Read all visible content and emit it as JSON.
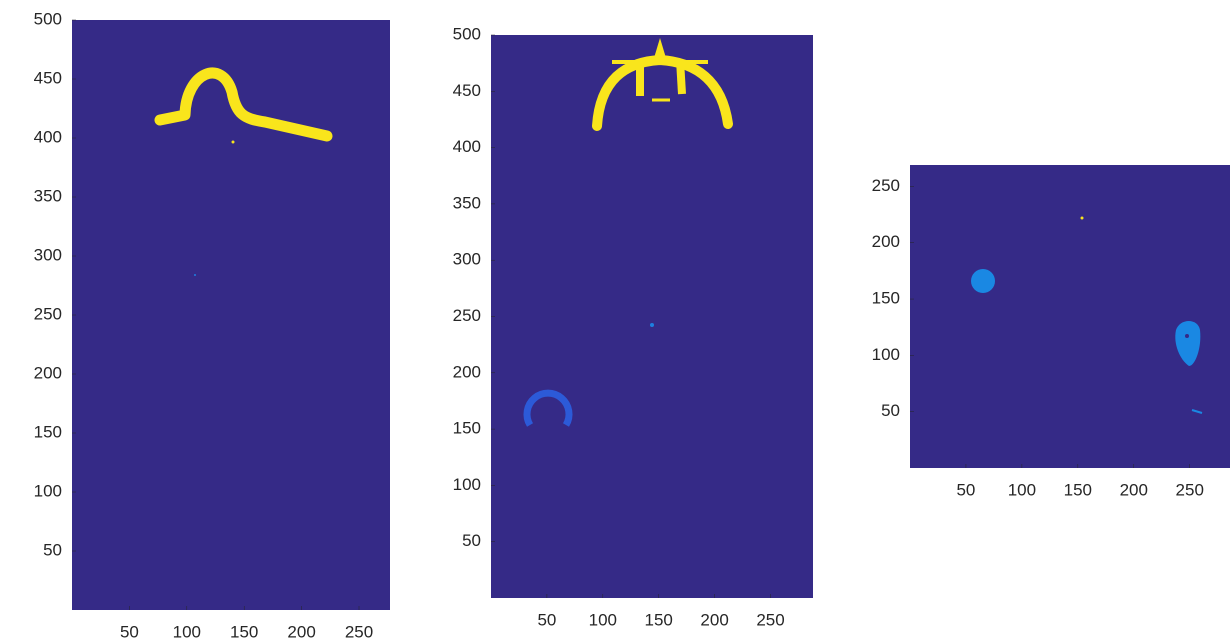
{
  "chart_data": [
    {
      "type": "image",
      "color": "#352a87",
      "xlim": [
        0,
        277
      ],
      "ylim": [
        0,
        500
      ],
      "xticks": [
        50,
        100,
        150,
        200,
        250
      ],
      "yticks": [
        50,
        100,
        150,
        200,
        250,
        300,
        350,
        400,
        450,
        500
      ]
    },
    {
      "type": "image",
      "color": "#352a87",
      "xlim": [
        0,
        288
      ],
      "ylim": [
        0,
        500
      ],
      "xticks": [
        50,
        100,
        150,
        200,
        250
      ],
      "yticks": [
        50,
        100,
        150,
        200,
        250,
        300,
        350,
        400,
        450,
        500
      ]
    },
    {
      "type": "image",
      "color": "#352a87",
      "xlim": [
        0,
        286
      ],
      "ylim": [
        0,
        269
      ],
      "xticks": [
        50,
        100,
        150,
        200,
        250
      ],
      "yticks": [
        50,
        100,
        150,
        200,
        250
      ]
    }
  ]
}
